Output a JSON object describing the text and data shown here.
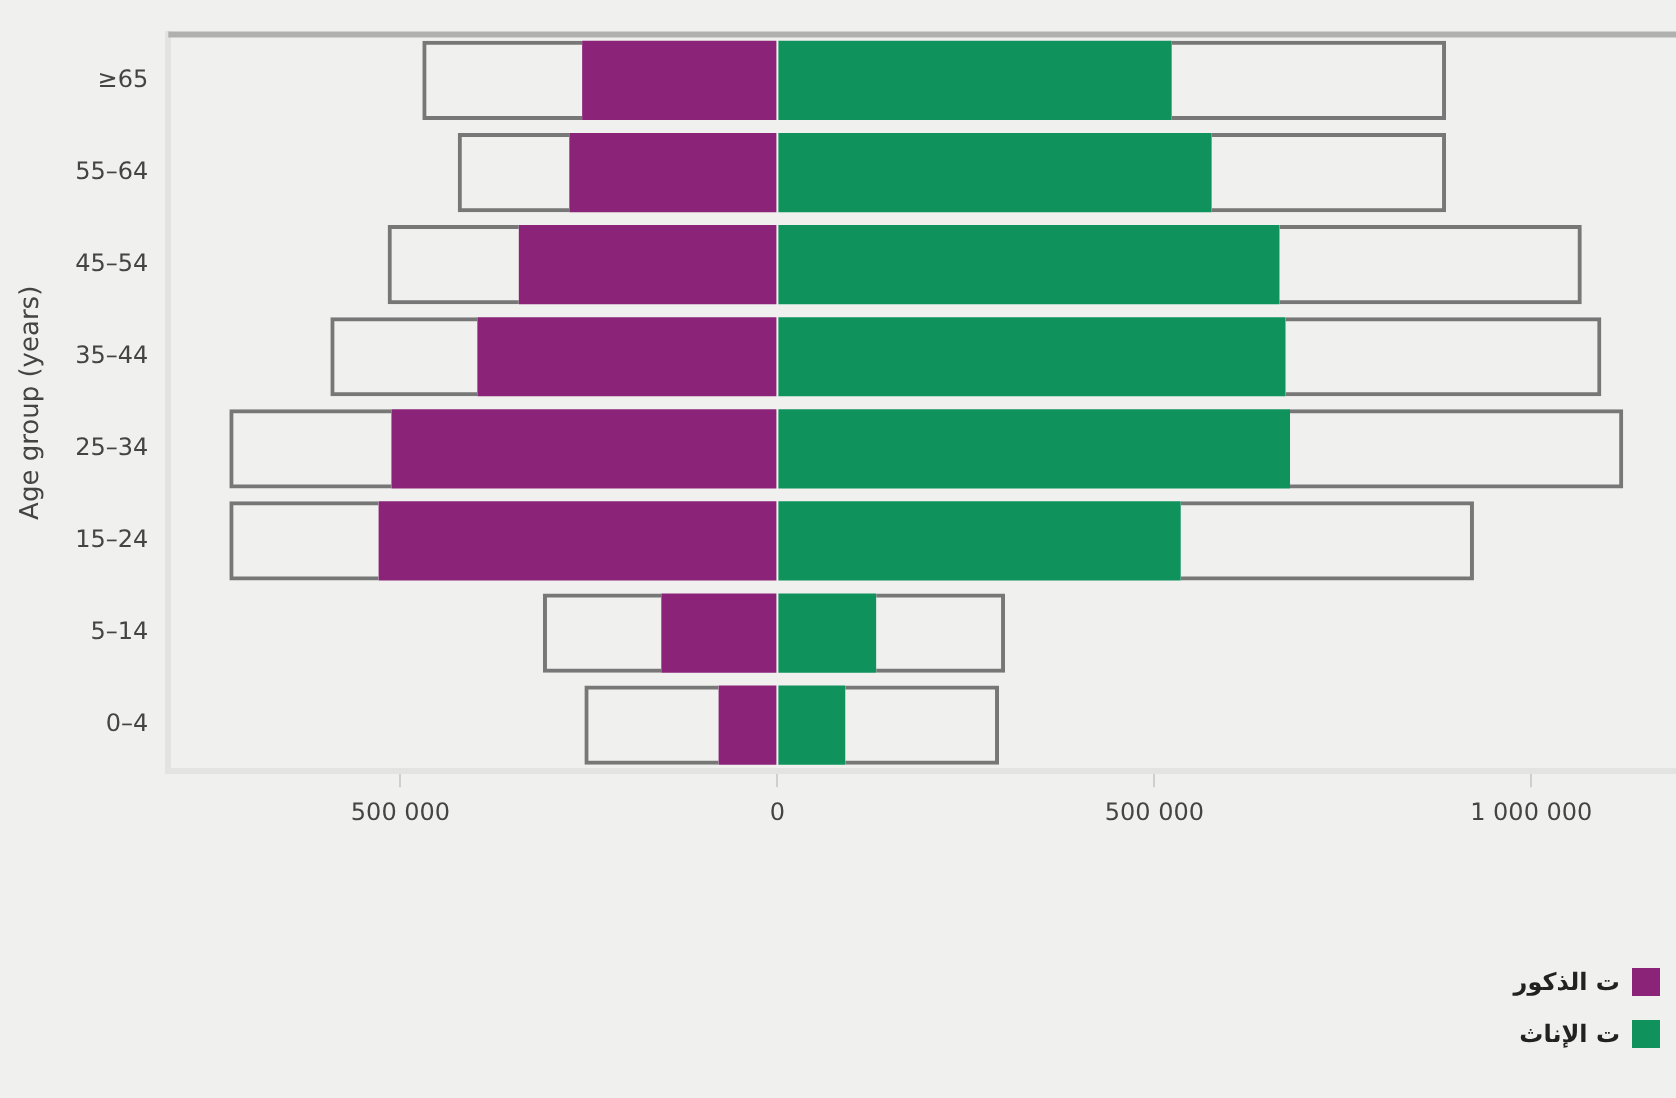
{
  "chart_data": {
    "type": "bar",
    "orientation": "horizontal",
    "ylabel": "Age group (years)",
    "categories": [
      "≥65",
      "55–64",
      "45–54",
      "35–44",
      "25–34",
      "15–24",
      "5–14",
      "0–4"
    ],
    "series": [
      {
        "name": "ت الذكور",
        "color": "#8b2379",
        "values": [
          -259000,
          -276000,
          -343000,
          -398000,
          -512000,
          -529000,
          -154000,
          -78000
        ]
      },
      {
        "color": "#777777",
        "values": [
          -212000,
          -148000,
          -174000,
          -195000,
          -215000,
          -198000,
          -157000,
          -178000
        ]
      },
      {
        "name": "ت الإناث",
        "color": "#10925d",
        "values": [
          523000,
          576000,
          666000,
          674000,
          680000,
          535000,
          131000,
          90000
        ]
      },
      {
        "color": "#777777",
        "values": [
          364000,
          311000,
          401000,
          419000,
          442000,
          389000,
          171000,
          204000
        ]
      }
    ],
    "stacked": true,
    "xlim": [
      -808000,
      1192000
    ],
    "xticks": [
      {
        "value": -500000,
        "label": "500 000"
      },
      0,
      {
        "value": 500000,
        "label": "500 000"
      },
      {
        "value": 1000000,
        "label": "1 000 000"
      }
    ],
    "grid": false,
    "legend": "bottom right"
  }
}
